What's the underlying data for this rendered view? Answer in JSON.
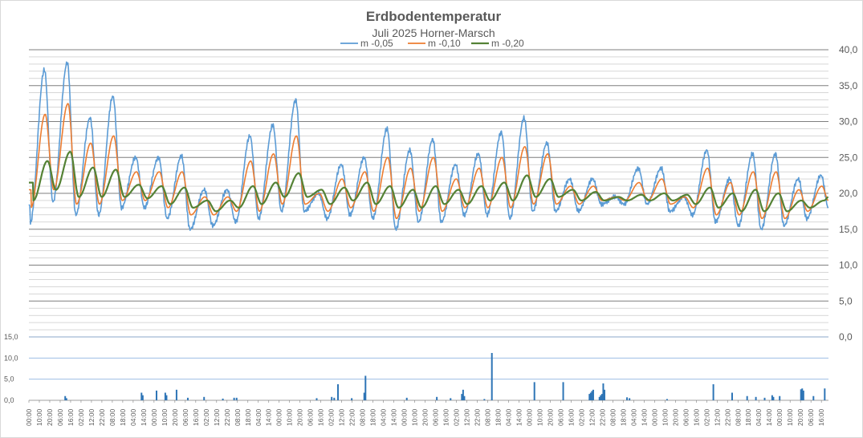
{
  "chart_data": [
    {
      "type": "line",
      "title": "Erdbodentemperatur",
      "subtitle": "Juli 2025 Horner-Marsch",
      "ylim": [
        0,
        40
      ],
      "y_ticks": [
        "0,0",
        "5,0",
        "10,0",
        "15,0",
        "20,0",
        "25,0",
        "30,0",
        "35,0",
        "40,0"
      ],
      "y_axis_side": "right",
      "grid": "horizontal minor gridlines every 1,0",
      "legend_position": "top",
      "series": [
        {
          "name": "m -0,05",
          "color": "#5b9bd5",
          "peaks": [
            37.2,
            38.2,
            30.5,
            33.5,
            25.0,
            25.0,
            25.2,
            20.5,
            20.5,
            28.0,
            29.5,
            33.0,
            20.0,
            24.0,
            25.0,
            29.0,
            26.0,
            27.5,
            24.0,
            25.5,
            28.5,
            30.5,
            27.0,
            22.0,
            22.0,
            19.5,
            23.5,
            23.5,
            19.5,
            26.0,
            22.0,
            25.5,
            25.5,
            22.0,
            22.5
          ],
          "troughs": [
            15.8,
            18.8,
            17.0,
            17.0,
            18.0,
            18.0,
            16.5,
            15.0,
            15.5,
            16.0,
            16.5,
            17.5,
            17.5,
            16.5,
            17.0,
            16.5,
            15.0,
            16.0,
            16.0,
            17.0,
            17.0,
            16.5,
            17.5,
            17.5,
            17.5,
            18.5,
            18.5,
            18.5,
            17.5,
            17.0,
            16.0,
            15.5,
            15.0,
            15.5,
            16.5
          ]
        },
        {
          "name": "m -0,10",
          "color": "#ed7d31",
          "peaks": [
            31.0,
            32.5,
            27.0,
            28.0,
            23.0,
            23.0,
            23.0,
            19.5,
            19.5,
            24.5,
            25.5,
            28.0,
            20.0,
            22.0,
            23.0,
            25.0,
            23.5,
            25.0,
            22.0,
            23.5,
            25.0,
            26.5,
            25.5,
            21.0,
            21.0,
            19.5,
            21.5,
            22.0,
            19.5,
            23.5,
            21.5,
            23.0,
            23.0,
            20.5,
            21.0
          ],
          "troughs": [
            18.0,
            20.5,
            18.5,
            18.5,
            19.0,
            19.0,
            18.0,
            17.0,
            17.0,
            17.5,
            17.5,
            18.5,
            18.5,
            17.5,
            18.0,
            17.5,
            16.5,
            17.5,
            17.5,
            18.0,
            18.0,
            18.0,
            18.5,
            18.5,
            18.5,
            19.0,
            19.0,
            19.0,
            18.5,
            18.0,
            17.0,
            17.0,
            16.5,
            16.5,
            17.5
          ]
        },
        {
          "name": "m -0,20",
          "color": "#548235",
          "peaks": [
            24.5,
            25.8,
            23.6,
            23.3,
            21.2,
            21.0,
            20.8,
            19.0,
            19.0,
            21.0,
            21.5,
            22.8,
            20.5,
            20.8,
            21.5,
            21.0,
            20.5,
            21.0,
            20.5,
            21.0,
            21.5,
            22.5,
            22.0,
            20.5,
            20.2,
            19.5,
            19.8,
            20.0,
            19.8,
            20.8,
            20.0,
            20.5,
            20.0,
            19.0,
            19.0
          ],
          "troughs": [
            19.0,
            20.5,
            19.5,
            19.5,
            19.5,
            19.3,
            18.5,
            18.0,
            17.5,
            18.0,
            18.5,
            19.5,
            19.5,
            18.5,
            19.0,
            18.5,
            18.0,
            18.0,
            18.5,
            18.5,
            19.0,
            19.0,
            19.5,
            19.5,
            19.0,
            19.0,
            19.0,
            19.0,
            19.0,
            18.5,
            18.0,
            17.5,
            17.5,
            17.5,
            18.0
          ]
        }
      ]
    },
    {
      "type": "bar",
      "ylim": [
        0,
        15
      ],
      "y_ticks": [
        "0,0",
        "5,0",
        "10,0",
        "15,0"
      ],
      "color": "#2e75b6",
      "x_tick_labels": [
        "00:00",
        "10:00",
        "20:00",
        "06:00",
        "16:00",
        "02:00",
        "12:00",
        "22:00",
        "08:00",
        "18:00",
        "04:00",
        "14:00",
        "00:00",
        "10:00",
        "20:00",
        "06:00",
        "16:00",
        "02:00",
        "12:00",
        "22:00",
        "08:00",
        "18:00",
        "04:00",
        "14:00",
        "00:00",
        "10:00",
        "20:00",
        "06:00",
        "16:00",
        "02:00",
        "12:00",
        "22:00",
        "08:00",
        "18:00",
        "04:00",
        "14:00",
        "00:00",
        "10:00",
        "20:00",
        "06:00",
        "16:00",
        "02:00",
        "12:00",
        "22:00",
        "08:00",
        "18:00",
        "04:00",
        "14:00",
        "00:00",
        "10:00",
        "20:00",
        "06:00",
        "16:00",
        "02:00",
        "12:00",
        "22:00",
        "08:00",
        "18:00",
        "04:00",
        "14:00",
        "00:00",
        "10:00",
        "20:00",
        "06:00",
        "16:00",
        "02:00",
        "12:00",
        "22:00",
        "08:00",
        "18:00",
        "04:00",
        "14:00",
        "00:00",
        "10:00",
        "20:00",
        "06:00",
        "16:00",
        "02:00",
        "12:00",
        "22:00",
        "08:00",
        "18:00",
        "04:00",
        "14:00",
        "00:00",
        "10:00",
        "20:00",
        "06:00",
        "16:00",
        "02:00",
        "12:00",
        "22:00",
        "08:00",
        "18:00",
        "04:00",
        "14:00",
        "00:00",
        "10:00",
        "20:00"
      ],
      "bars": [
        {
          "t": 1.45,
          "v": 1.0
        },
        {
          "t": 1.5,
          "v": 0.5
        },
        {
          "t": 4.5,
          "v": 1.8
        },
        {
          "t": 4.55,
          "v": 1.2
        },
        {
          "t": 5.1,
          "v": 2.3
        },
        {
          "t": 5.45,
          "v": 1.8
        },
        {
          "t": 5.5,
          "v": 1.2
        },
        {
          "t": 5.9,
          "v": 2.5
        },
        {
          "t": 6.35,
          "v": 0.6
        },
        {
          "t": 7.0,
          "v": 0.8
        },
        {
          "t": 7.75,
          "v": 0.4
        },
        {
          "t": 8.2,
          "v": 0.6
        },
        {
          "t": 8.3,
          "v": 0.6
        },
        {
          "t": 11.5,
          "v": 0.5
        },
        {
          "t": 12.1,
          "v": 0.8
        },
        {
          "t": 12.2,
          "v": 0.6
        },
        {
          "t": 12.35,
          "v": 3.8
        },
        {
          "t": 12.9,
          "v": 0.5
        },
        {
          "t": 13.4,
          "v": 1.8
        },
        {
          "t": 13.45,
          "v": 5.8
        },
        {
          "t": 15.1,
          "v": 0.6
        },
        {
          "t": 16.3,
          "v": 0.8
        },
        {
          "t": 16.85,
          "v": 0.5
        },
        {
          "t": 17.3,
          "v": 1.5
        },
        {
          "t": 17.35,
          "v": 2.5
        },
        {
          "t": 17.4,
          "v": 1.0
        },
        {
          "t": 18.2,
          "v": 0.3
        },
        {
          "t": 18.5,
          "v": 11.2
        },
        {
          "t": 20.2,
          "v": 4.3
        },
        {
          "t": 21.35,
          "v": 4.3
        },
        {
          "t": 22.4,
          "v": 1.5
        },
        {
          "t": 22.45,
          "v": 1.8
        },
        {
          "t": 22.5,
          "v": 2.2
        },
        {
          "t": 22.55,
          "v": 2.5
        },
        {
          "t": 22.8,
          "v": 0.8
        },
        {
          "t": 22.85,
          "v": 1.2
        },
        {
          "t": 22.9,
          "v": 1.5
        },
        {
          "t": 22.95,
          "v": 4.0
        },
        {
          "t": 23.0,
          "v": 2.5
        },
        {
          "t": 23.9,
          "v": 0.7
        },
        {
          "t": 24.0,
          "v": 0.5
        },
        {
          "t": 25.5,
          "v": 0.3
        },
        {
          "t": 27.35,
          "v": 3.8
        },
        {
          "t": 28.1,
          "v": 1.8
        },
        {
          "t": 28.7,
          "v": 1.0
        },
        {
          "t": 29.05,
          "v": 0.8
        },
        {
          "t": 29.4,
          "v": 0.6
        },
        {
          "t": 29.7,
          "v": 1.2
        },
        {
          "t": 29.75,
          "v": 0.8
        },
        {
          "t": 30.0,
          "v": 1.0
        },
        {
          "t": 30.85,
          "v": 2.6
        },
        {
          "t": 30.9,
          "v": 2.8
        },
        {
          "t": 30.95,
          "v": 2.3
        },
        {
          "t": 31.35,
          "v": 1.0
        },
        {
          "t": 31.8,
          "v": 2.8
        }
      ]
    }
  ]
}
